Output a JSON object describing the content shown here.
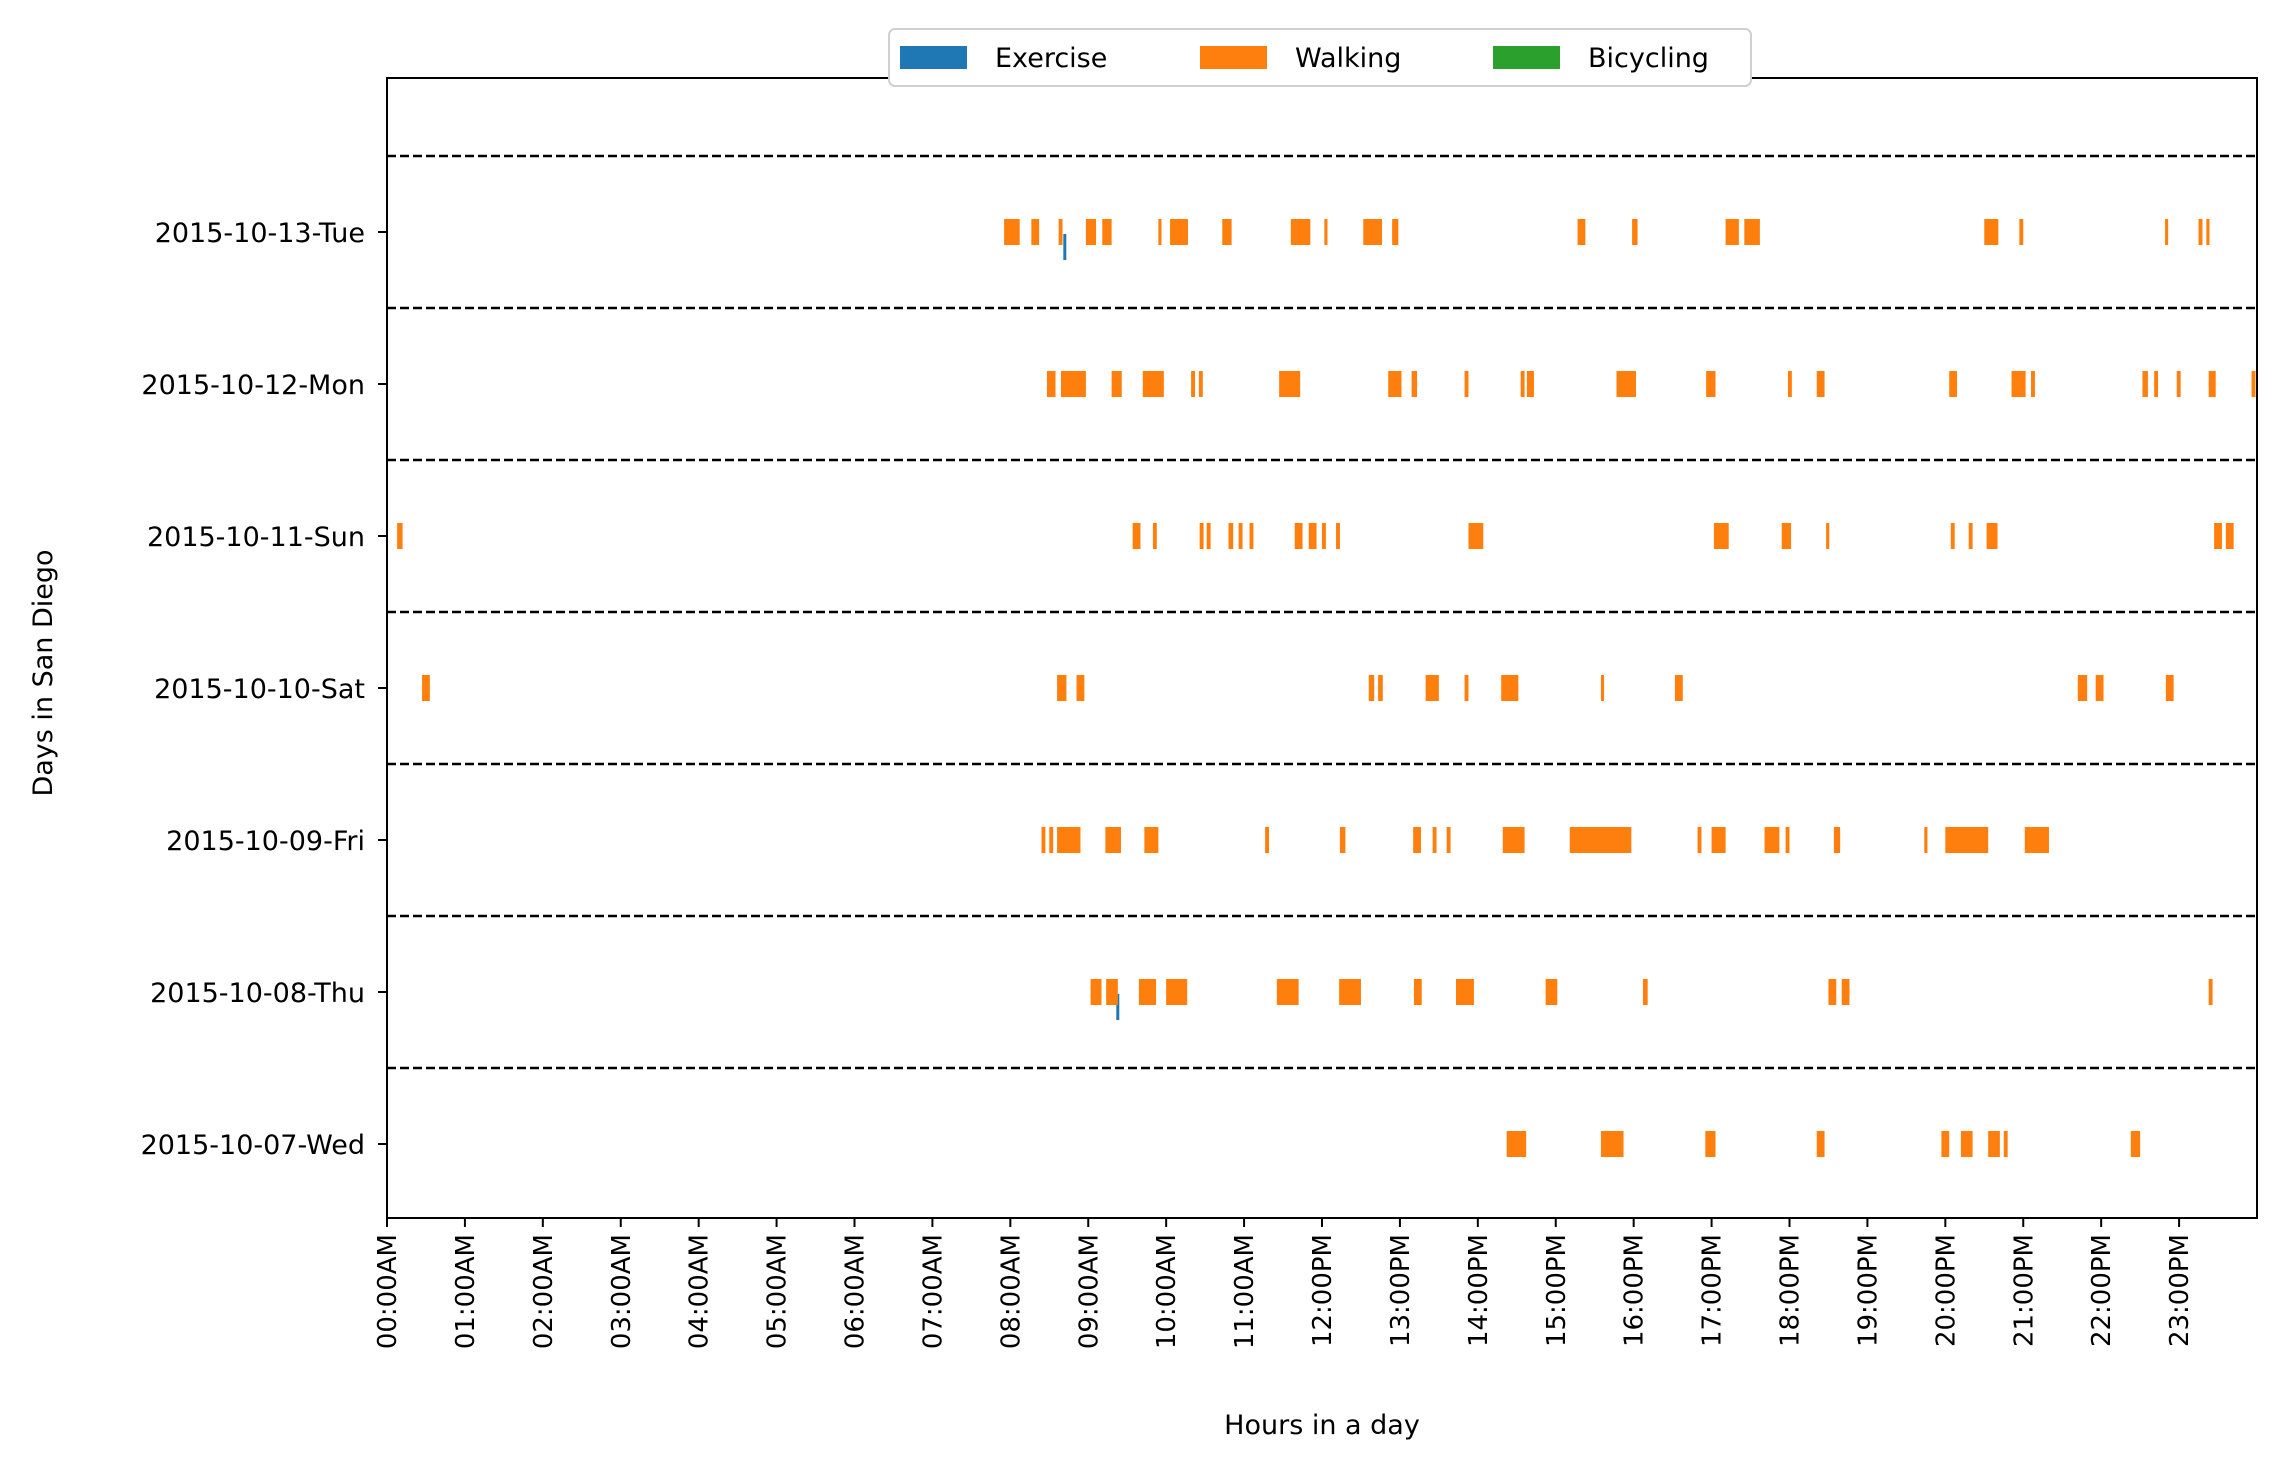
{
  "chart_data": {
    "type": "broken-barh",
    "xlabel": "Hours in a day",
    "ylabel": "Days in San Diego",
    "xlim": [
      0,
      24
    ],
    "x_ticks": [
      0,
      1,
      2,
      3,
      4,
      5,
      6,
      7,
      8,
      9,
      10,
      11,
      12,
      13,
      14,
      15,
      16,
      17,
      18,
      19,
      20,
      21,
      22,
      23
    ],
    "x_tick_labels": [
      "00:00AM",
      "01:00AM",
      "02:00AM",
      "03:00AM",
      "04:00AM",
      "05:00AM",
      "06:00AM",
      "07:00AM",
      "08:00AM",
      "09:00AM",
      "10:00AM",
      "11:00AM",
      "12:00PM",
      "13:00PM",
      "14:00PM",
      "15:00PM",
      "16:00PM",
      "17:00PM",
      "18:00PM",
      "19:00PM",
      "20:00PM",
      "21:00PM",
      "22:00PM",
      "23:00PM"
    ],
    "days": [
      "2015-10-13-Tue",
      "2015-10-12-Mon",
      "2015-10-11-Sun",
      "2015-10-10-Sat",
      "2015-10-09-Fri",
      "2015-10-08-Thu",
      "2015-10-07-Wed"
    ],
    "legend": {
      "placement": "upper-center",
      "entries": [
        {
          "name": "Exercise",
          "color": "#1f77b4"
        },
        {
          "name": "Walking",
          "color": "#ff7f0e"
        },
        {
          "name": "Bicycling",
          "color": "#2ca02c"
        }
      ]
    },
    "separators": "dashed horizontal line between days",
    "series": [
      {
        "name": "Exercise",
        "color": "#1f77b4",
        "intervals": [
          {
            "day": "2015-10-13-Tue",
            "start": 8.68,
            "end": 8.71
          },
          {
            "day": "2015-10-08-Thu",
            "start": 9.36,
            "end": 9.39
          }
        ]
      },
      {
        "name": "Walking",
        "color": "#ff7f0e",
        "intervals": [
          {
            "day": "2015-10-13-Tue",
            "start": 7.92,
            "end": 8.12
          },
          {
            "day": "2015-10-13-Tue",
            "start": 8.27,
            "end": 8.37
          },
          {
            "day": "2015-10-13-Tue",
            "start": 8.62,
            "end": 8.67
          },
          {
            "day": "2015-10-13-Tue",
            "start": 8.97,
            "end": 9.1
          },
          {
            "day": "2015-10-13-Tue",
            "start": 9.18,
            "end": 9.3
          },
          {
            "day": "2015-10-13-Tue",
            "start": 9.9,
            "end": 9.94
          },
          {
            "day": "2015-10-13-Tue",
            "start": 10.05,
            "end": 10.28
          },
          {
            "day": "2015-10-13-Tue",
            "start": 10.72,
            "end": 10.84
          },
          {
            "day": "2015-10-13-Tue",
            "start": 11.6,
            "end": 11.85
          },
          {
            "day": "2015-10-13-Tue",
            "start": 12.03,
            "end": 12.07
          },
          {
            "day": "2015-10-13-Tue",
            "start": 12.53,
            "end": 12.77
          },
          {
            "day": "2015-10-13-Tue",
            "start": 12.9,
            "end": 12.98
          },
          {
            "day": "2015-10-13-Tue",
            "start": 15.28,
            "end": 15.38
          },
          {
            "day": "2015-10-13-Tue",
            "start": 15.98,
            "end": 16.05
          },
          {
            "day": "2015-10-13-Tue",
            "start": 17.18,
            "end": 17.35
          },
          {
            "day": "2015-10-13-Tue",
            "start": 17.42,
            "end": 17.62
          },
          {
            "day": "2015-10-13-Tue",
            "start": 20.5,
            "end": 20.68
          },
          {
            "day": "2015-10-13-Tue",
            "start": 20.95,
            "end": 21.0
          },
          {
            "day": "2015-10-13-Tue",
            "start": 22.82,
            "end": 22.86
          },
          {
            "day": "2015-10-13-Tue",
            "start": 23.25,
            "end": 23.3
          },
          {
            "day": "2015-10-13-Tue",
            "start": 23.35,
            "end": 23.39
          },
          {
            "day": "2015-10-12-Mon",
            "start": 8.47,
            "end": 8.58
          },
          {
            "day": "2015-10-12-Mon",
            "start": 8.65,
            "end": 8.97
          },
          {
            "day": "2015-10-12-Mon",
            "start": 9.3,
            "end": 9.43
          },
          {
            "day": "2015-10-12-Mon",
            "start": 9.7,
            "end": 9.97
          },
          {
            "day": "2015-10-12-Mon",
            "start": 10.32,
            "end": 10.37
          },
          {
            "day": "2015-10-12-Mon",
            "start": 10.42,
            "end": 10.47
          },
          {
            "day": "2015-10-12-Mon",
            "start": 11.45,
            "end": 11.72
          },
          {
            "day": "2015-10-12-Mon",
            "start": 12.85,
            "end": 13.02
          },
          {
            "day": "2015-10-12-Mon",
            "start": 13.15,
            "end": 13.22
          },
          {
            "day": "2015-10-12-Mon",
            "start": 13.83,
            "end": 13.88
          },
          {
            "day": "2015-10-12-Mon",
            "start": 14.55,
            "end": 14.6
          },
          {
            "day": "2015-10-12-Mon",
            "start": 14.63,
            "end": 14.72
          },
          {
            "day": "2015-10-12-Mon",
            "start": 15.78,
            "end": 16.03
          },
          {
            "day": "2015-10-12-Mon",
            "start": 16.93,
            "end": 17.05
          },
          {
            "day": "2015-10-12-Mon",
            "start": 17.98,
            "end": 18.03
          },
          {
            "day": "2015-10-12-Mon",
            "start": 18.35,
            "end": 18.45
          },
          {
            "day": "2015-10-12-Mon",
            "start": 20.05,
            "end": 20.15
          },
          {
            "day": "2015-10-12-Mon",
            "start": 20.85,
            "end": 21.03
          },
          {
            "day": "2015-10-12-Mon",
            "start": 21.1,
            "end": 21.15
          },
          {
            "day": "2015-10-12-Mon",
            "start": 22.53,
            "end": 22.6
          },
          {
            "day": "2015-10-12-Mon",
            "start": 22.68,
            "end": 22.73
          },
          {
            "day": "2015-10-12-Mon",
            "start": 22.97,
            "end": 23.02
          },
          {
            "day": "2015-10-12-Mon",
            "start": 23.38,
            "end": 23.47
          },
          {
            "day": "2015-10-12-Mon",
            "start": 23.93,
            "end": 23.98
          },
          {
            "day": "2015-10-11-Sun",
            "start": 0.13,
            "end": 0.2
          },
          {
            "day": "2015-10-11-Sun",
            "start": 9.57,
            "end": 9.67
          },
          {
            "day": "2015-10-11-Sun",
            "start": 9.83,
            "end": 9.88
          },
          {
            "day": "2015-10-11-Sun",
            "start": 10.43,
            "end": 10.48
          },
          {
            "day": "2015-10-11-Sun",
            "start": 10.52,
            "end": 10.57
          },
          {
            "day": "2015-10-11-Sun",
            "start": 10.8,
            "end": 10.86
          },
          {
            "day": "2015-10-11-Sun",
            "start": 10.93,
            "end": 10.98
          },
          {
            "day": "2015-10-11-Sun",
            "start": 11.07,
            "end": 11.12
          },
          {
            "day": "2015-10-11-Sun",
            "start": 11.65,
            "end": 11.75
          },
          {
            "day": "2015-10-11-Sun",
            "start": 11.83,
            "end": 11.93
          },
          {
            "day": "2015-10-11-Sun",
            "start": 12.0,
            "end": 12.05
          },
          {
            "day": "2015-10-11-Sun",
            "start": 12.18,
            "end": 12.23
          },
          {
            "day": "2015-10-11-Sun",
            "start": 13.88,
            "end": 14.07
          },
          {
            "day": "2015-10-11-Sun",
            "start": 17.03,
            "end": 17.22
          },
          {
            "day": "2015-10-11-Sun",
            "start": 17.9,
            "end": 18.02
          },
          {
            "day": "2015-10-11-Sun",
            "start": 18.47,
            "end": 18.51
          },
          {
            "day": "2015-10-11-Sun",
            "start": 20.07,
            "end": 20.12
          },
          {
            "day": "2015-10-11-Sun",
            "start": 20.3,
            "end": 20.35
          },
          {
            "day": "2015-10-11-Sun",
            "start": 20.53,
            "end": 20.67
          },
          {
            "day": "2015-10-11-Sun",
            "start": 23.45,
            "end": 23.55
          },
          {
            "day": "2015-10-11-Sun",
            "start": 23.6,
            "end": 23.7
          },
          {
            "day": "2015-10-10-Sat",
            "start": 0.45,
            "end": 0.55
          },
          {
            "day": "2015-10-10-Sat",
            "start": 8.6,
            "end": 8.72
          },
          {
            "day": "2015-10-10-Sat",
            "start": 8.85,
            "end": 8.95
          },
          {
            "day": "2015-10-10-Sat",
            "start": 12.6,
            "end": 12.67
          },
          {
            "day": "2015-10-10-Sat",
            "start": 12.72,
            "end": 12.78
          },
          {
            "day": "2015-10-10-Sat",
            "start": 13.33,
            "end": 13.5
          },
          {
            "day": "2015-10-10-Sat",
            "start": 13.83,
            "end": 13.88
          },
          {
            "day": "2015-10-10-Sat",
            "start": 14.3,
            "end": 14.52
          },
          {
            "day": "2015-10-10-Sat",
            "start": 15.58,
            "end": 15.62
          },
          {
            "day": "2015-10-10-Sat",
            "start": 16.53,
            "end": 16.63
          },
          {
            "day": "2015-10-10-Sat",
            "start": 21.7,
            "end": 21.82
          },
          {
            "day": "2015-10-10-Sat",
            "start": 21.93,
            "end": 22.03
          },
          {
            "day": "2015-10-10-Sat",
            "start": 22.83,
            "end": 22.93
          },
          {
            "day": "2015-10-09-Fri",
            "start": 8.4,
            "end": 8.45
          },
          {
            "day": "2015-10-09-Fri",
            "start": 8.5,
            "end": 8.55
          },
          {
            "day": "2015-10-09-Fri",
            "start": 8.6,
            "end": 8.9
          },
          {
            "day": "2015-10-09-Fri",
            "start": 9.22,
            "end": 9.42
          },
          {
            "day": "2015-10-09-Fri",
            "start": 9.72,
            "end": 9.9
          },
          {
            "day": "2015-10-09-Fri",
            "start": 11.27,
            "end": 11.32
          },
          {
            "day": "2015-10-09-Fri",
            "start": 12.23,
            "end": 12.3
          },
          {
            "day": "2015-10-09-Fri",
            "start": 13.17,
            "end": 13.27
          },
          {
            "day": "2015-10-09-Fri",
            "start": 13.42,
            "end": 13.47
          },
          {
            "day": "2015-10-09-Fri",
            "start": 13.6,
            "end": 13.65
          },
          {
            "day": "2015-10-09-Fri",
            "start": 14.32,
            "end": 14.6
          },
          {
            "day": "2015-10-09-Fri",
            "start": 15.18,
            "end": 15.97
          },
          {
            "day": "2015-10-09-Fri",
            "start": 16.82,
            "end": 16.87
          },
          {
            "day": "2015-10-09-Fri",
            "start": 17.0,
            "end": 17.18
          },
          {
            "day": "2015-10-09-Fri",
            "start": 17.68,
            "end": 17.87
          },
          {
            "day": "2015-10-09-Fri",
            "start": 17.95,
            "end": 18.0
          },
          {
            "day": "2015-10-09-Fri",
            "start": 18.57,
            "end": 18.65
          },
          {
            "day": "2015-10-09-Fri",
            "start": 19.73,
            "end": 19.77
          },
          {
            "day": "2015-10-09-Fri",
            "start": 20.0,
            "end": 20.55
          },
          {
            "day": "2015-10-09-Fri",
            "start": 21.02,
            "end": 21.33
          },
          {
            "day": "2015-10-08-Thu",
            "start": 9.03,
            "end": 9.17
          },
          {
            "day": "2015-10-08-Thu",
            "start": 9.23,
            "end": 9.38
          },
          {
            "day": "2015-10-08-Thu",
            "start": 9.65,
            "end": 9.87
          },
          {
            "day": "2015-10-08-Thu",
            "start": 10.0,
            "end": 10.27
          },
          {
            "day": "2015-10-08-Thu",
            "start": 11.42,
            "end": 11.7
          },
          {
            "day": "2015-10-08-Thu",
            "start": 12.22,
            "end": 12.5
          },
          {
            "day": "2015-10-08-Thu",
            "start": 13.18,
            "end": 13.28
          },
          {
            "day": "2015-10-08-Thu",
            "start": 13.72,
            "end": 13.95
          },
          {
            "day": "2015-10-08-Thu",
            "start": 14.87,
            "end": 15.02
          },
          {
            "day": "2015-10-08-Thu",
            "start": 16.12,
            "end": 16.18
          },
          {
            "day": "2015-10-08-Thu",
            "start": 18.5,
            "end": 18.6
          },
          {
            "day": "2015-10-08-Thu",
            "start": 18.67,
            "end": 18.77
          },
          {
            "day": "2015-10-08-Thu",
            "start": 23.38,
            "end": 23.43
          },
          {
            "day": "2015-10-07-Wed",
            "start": 14.37,
            "end": 14.62
          },
          {
            "day": "2015-10-07-Wed",
            "start": 15.58,
            "end": 15.87
          },
          {
            "day": "2015-10-07-Wed",
            "start": 16.92,
            "end": 17.05
          },
          {
            "day": "2015-10-07-Wed",
            "start": 18.35,
            "end": 18.45
          },
          {
            "day": "2015-10-07-Wed",
            "start": 19.95,
            "end": 20.05
          },
          {
            "day": "2015-10-07-Wed",
            "start": 20.2,
            "end": 20.35
          },
          {
            "day": "2015-10-07-Wed",
            "start": 20.55,
            "end": 20.7
          },
          {
            "day": "2015-10-07-Wed",
            "start": 20.75,
            "end": 20.8
          },
          {
            "day": "2015-10-07-Wed",
            "start": 22.38,
            "end": 22.5
          }
        ]
      },
      {
        "name": "Bicycling",
        "color": "#2ca02c",
        "intervals": []
      }
    ]
  }
}
